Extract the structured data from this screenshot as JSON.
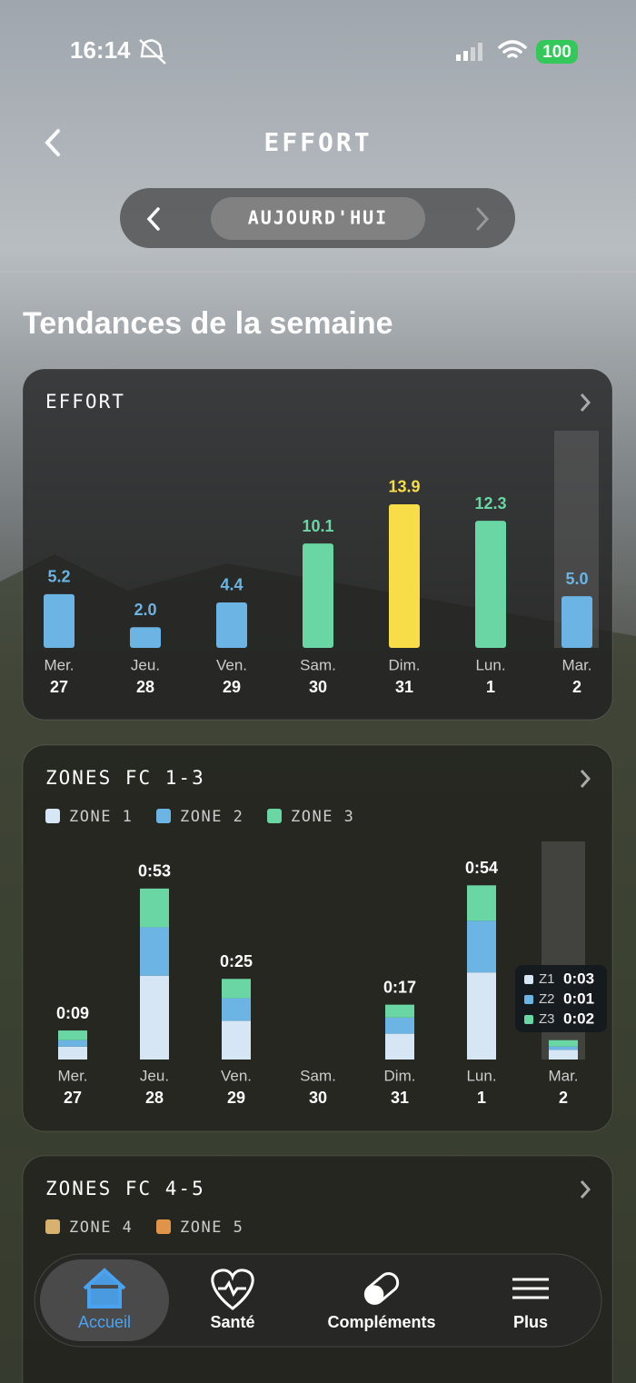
{
  "status_bar": {
    "time": "16:14",
    "battery": "100"
  },
  "header": {
    "title": "EFFORT"
  },
  "date_nav": {
    "label": "AUJOURD'HUI"
  },
  "section_title": "Tendances de la semaine",
  "effort_chart": {
    "type": "bar",
    "title": "EFFORT",
    "categories": [
      "Mer.",
      "Jeu.",
      "Ven.",
      "Sam.",
      "Dim.",
      "Lun.",
      "Mar."
    ],
    "dates": [
      "27",
      "28",
      "29",
      "30",
      "31",
      "1",
      "2"
    ],
    "values": [
      5.2,
      2.0,
      4.4,
      10.1,
      13.9,
      12.3,
      5.0
    ],
    "value_labels": [
      "5.2",
      "2.0",
      "4.4",
      "10.1",
      "13.9",
      "12.3",
      "5.0"
    ],
    "colors": [
      "#6bb4e4",
      "#6bb4e4",
      "#6bb4e4",
      "#6ad6a4",
      "#f8dc48",
      "#6ad6a4",
      "#6bb4e4"
    ]
  },
  "zones_chart": {
    "type": "stacked-bar",
    "title": "ZONES FC 1-3",
    "categories": [
      "Mer.",
      "Jeu.",
      "Ven.",
      "Sam.",
      "Dim.",
      "Lun.",
      "Mar."
    ],
    "dates": [
      "27",
      "28",
      "29",
      "30",
      "31",
      "1",
      "2"
    ],
    "series": [
      {
        "name": "ZONE 1",
        "color": "#d6e6f5",
        "values": [
          4,
          26,
          12,
          0,
          8,
          27,
          3
        ]
      },
      {
        "name": "ZONE 2",
        "color": "#6bb4e4",
        "values": [
          2,
          15,
          7,
          0,
          5,
          16,
          1
        ]
      },
      {
        "name": "ZONE 3",
        "color": "#6ad6a4",
        "values": [
          3,
          12,
          6,
          0,
          4,
          11,
          2
        ]
      }
    ],
    "total_labels": [
      "0:09",
      "0:53",
      "0:25",
      null,
      "0:17",
      "0:54",
      null
    ],
    "tooltip": [
      {
        "label": "Z1",
        "value": "0:03"
      },
      {
        "label": "Z2",
        "value": "0:01"
      },
      {
        "label": "Z3",
        "value": "0:02"
      }
    ]
  },
  "zones45_chart": {
    "title": "ZONES FC 4-5",
    "series": [
      {
        "name": "ZONE 4",
        "color": "#d8b070"
      },
      {
        "name": "ZONE 5",
        "color": "#e0944a"
      }
    ]
  },
  "tab_bar": {
    "items": [
      "Accueil",
      "Santé",
      "Compléments",
      "Plus"
    ]
  }
}
